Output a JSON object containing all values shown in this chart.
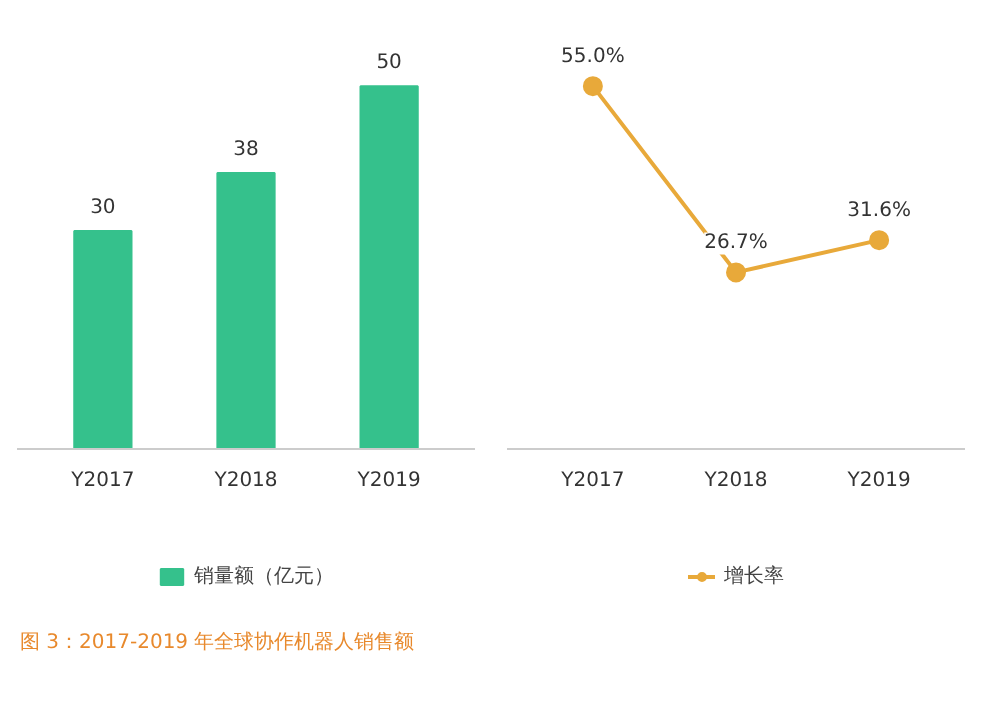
{
  "chart_data": [
    {
      "type": "bar",
      "categories": [
        "Y2017",
        "Y2018",
        "Y2019"
      ],
      "series": [
        {
          "name": "销量额（亿元）",
          "color": "#35c18c",
          "values": [
            30,
            38,
            50
          ]
        }
      ],
      "data_labels": true,
      "legend": "bottom",
      "grid": false,
      "annotations": [
        "图 3：2017-2019 年全球协作机器人销售额"
      ]
    },
    {
      "type": "line",
      "categories": [
        "Y2017",
        "Y2018",
        "Y2019"
      ],
      "series": [
        {
          "name": "增长率",
          "color": "#e8a93a",
          "values": [
            55.0,
            26.7,
            31.6
          ],
          "value_labels": [
            "55.0%",
            "26.7%",
            "31.6%"
          ]
        }
      ],
      "marker": "circle",
      "line_style": "solid",
      "legend": "bottom",
      "grid": false
    }
  ]
}
